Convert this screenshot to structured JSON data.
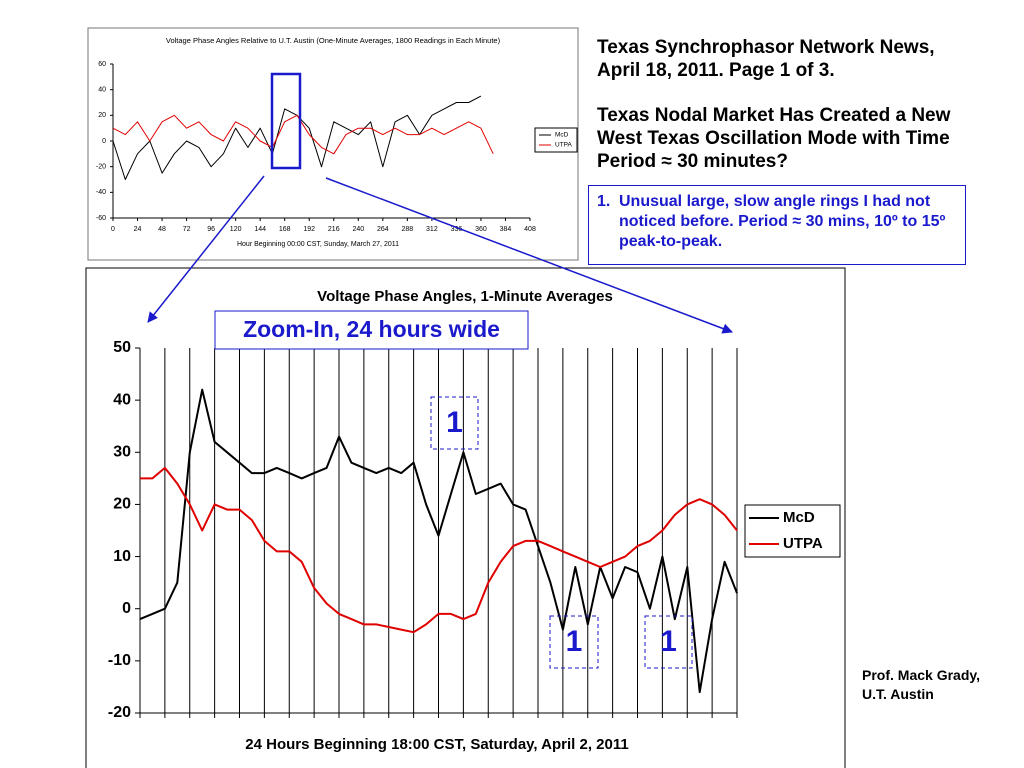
{
  "header": {
    "title": "Texas Synchrophasor Network News, April 18, 2011.  Page 1 of 3.",
    "headline": "Texas Nodal Market Has Created a New West Texas Oscillation Mode with Time Period ≈ 30 minutes?"
  },
  "note": {
    "number": "1.",
    "text": "Unusual large, slow angle rings I had not noticed before.  Period ≈ 30 mins, 10º to 15º peak-to-peak."
  },
  "credit": [
    "Prof. Mack Grady,",
    "U.T. Austin"
  ],
  "chart_data": [
    {
      "type": "line",
      "title": "Voltage Phase Angles Relative to U.T. Austin (One-Minute Averages, 1800 Readings in Each Minute)",
      "x_label": "Hour Beginning 00:00 CST, Sunday, March 27, 2011",
      "x": [
        0,
        12,
        24,
        36,
        48,
        60,
        72,
        84,
        96,
        108,
        120,
        132,
        144,
        156,
        168,
        180,
        192,
        204,
        216,
        228,
        240,
        252,
        264,
        276,
        288,
        300,
        312,
        324,
        336,
        348,
        360,
        372
      ],
      "series": [
        {
          "name": "McD",
          "color": "#000000",
          "values": [
            0,
            -30,
            -10,
            0,
            -25,
            -10,
            0,
            -5,
            -20,
            -10,
            10,
            -5,
            10,
            -10,
            25,
            20,
            10,
            -20,
            15,
            10,
            5,
            15,
            -20,
            15,
            20,
            5,
            20,
            25,
            30,
            30,
            35,
            null
          ]
        },
        {
          "name": "UTPA",
          "color": "#e00000",
          "values": [
            10,
            5,
            15,
            0,
            15,
            20,
            10,
            15,
            5,
            0,
            15,
            10,
            0,
            -5,
            15,
            20,
            5,
            -5,
            -10,
            5,
            10,
            10,
            5,
            10,
            5,
            5,
            10,
            5,
            10,
            15,
            10,
            -10
          ]
        }
      ],
      "xlim": [
        0,
        408
      ],
      "xticks": [
        0,
        24,
        48,
        72,
        96,
        120,
        144,
        168,
        192,
        216,
        240,
        264,
        288,
        312,
        336,
        360,
        384,
        408
      ],
      "ylim": [
        -60,
        60
      ],
      "yticks": [
        -60,
        -40,
        -20,
        0,
        20,
        40,
        60
      ],
      "grid": false,
      "x_tick_labels": true,
      "legend": "right"
    },
    {
      "type": "line",
      "title": "Voltage Phase Angles, 1-Minute Averages",
      "x_label": "24 Hours Beginning 18:00 CST, Saturday, April 2, 2011",
      "x": [
        0,
        0.5,
        1,
        1.5,
        2,
        2.5,
        3,
        3.5,
        4,
        4.5,
        5,
        5.5,
        6,
        6.5,
        7,
        7.5,
        8,
        8.5,
        9,
        9.5,
        10,
        10.5,
        11,
        11.5,
        12,
        12.5,
        13,
        13.5,
        14,
        14.5,
        15,
        15.5,
        16,
        16.5,
        17,
        17.5,
        18,
        18.5,
        19,
        19.5,
        20,
        20.5,
        21,
        21.5,
        22,
        22.5,
        23,
        23.5,
        24
      ],
      "series": [
        {
          "name": "McD",
          "color": "#000000",
          "values": [
            -2,
            -1,
            0,
            5,
            30,
            42,
            32,
            30,
            28,
            26,
            26,
            27,
            26,
            25,
            26,
            27,
            33,
            28,
            27,
            26,
            27,
            26,
            28,
            20,
            14,
            22,
            30,
            22,
            23,
            24,
            20,
            19,
            12,
            5,
            -4,
            8,
            -3,
            8,
            2,
            8,
            7,
            0,
            10,
            -2,
            8,
            -16,
            -2,
            9,
            3
          ]
        },
        {
          "name": "UTPA",
          "color": "#e00000",
          "values": [
            25,
            25,
            27,
            24,
            20,
            15,
            20,
            19,
            19,
            17,
            13,
            11,
            11,
            9,
            4,
            1,
            -1,
            -2,
            -3,
            -3,
            -3.5,
            -4,
            -4.5,
            -3,
            -1,
            -1,
            -2,
            -1,
            5,
            9,
            12,
            13,
            13,
            12,
            11,
            10,
            9,
            8,
            9,
            10,
            12,
            13,
            15,
            18,
            20,
            21,
            20,
            18,
            15
          ]
        }
      ],
      "xlim": [
        0,
        24
      ],
      "xticks": [
        0,
        1,
        2,
        3,
        4,
        5,
        6,
        7,
        8,
        9,
        10,
        11,
        12,
        13,
        14,
        15,
        16,
        17,
        18,
        19,
        20,
        21,
        22,
        23,
        24
      ],
      "ylim": [
        -20,
        50
      ],
      "yticks": [
        -20,
        -10,
        0,
        10,
        20,
        30,
        40,
        50
      ],
      "grid": true,
      "x_tick_labels": false,
      "legend": "right",
      "annotations": [
        "Zoom-In, 24 hours wide",
        "1",
        "1",
        "1"
      ]
    }
  ]
}
